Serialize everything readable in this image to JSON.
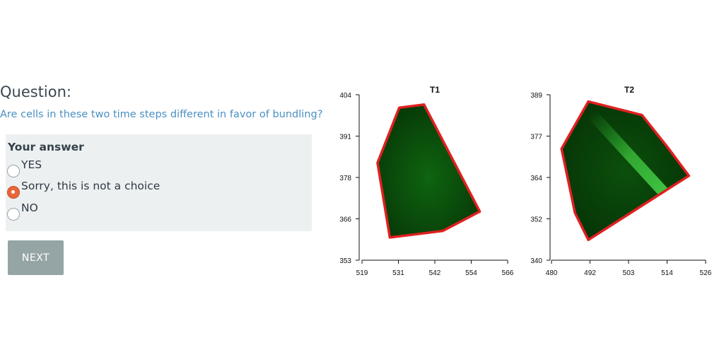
{
  "question": {
    "heading": "Question:",
    "text": "Are cells in these two time steps different in favor of bundling?"
  },
  "answer": {
    "title": "Your answer",
    "options": [
      {
        "label": "YES",
        "selected": false
      },
      {
        "label": "Sorry, this is not a choice",
        "selected": true
      },
      {
        "label": "NO",
        "selected": false
      }
    ]
  },
  "next_button": "NEXT",
  "colors": {
    "link_blue": "#4a8fc2",
    "answer_box_bg": "#edf0f1",
    "radio_selected": "#e9663a",
    "button_bg": "#95a5a6",
    "cell_outline": "#e02020",
    "cell_fill": "#0c5a0c"
  },
  "chart_data": [
    {
      "type": "scatter",
      "title": "T1",
      "x_ticks": [
        "519",
        "531",
        "542",
        "554",
        "566"
      ],
      "y_ticks": [
        "353",
        "366",
        "378",
        "391",
        "404"
      ],
      "xlim": [
        519,
        566
      ],
      "ylim": [
        353,
        404
      ],
      "outline_polygon": [
        [
          531,
          400
        ],
        [
          539,
          401
        ],
        [
          557,
          368
        ],
        [
          545,
          362
        ],
        [
          528,
          360
        ],
        [
          524,
          383
        ]
      ]
    },
    {
      "type": "scatter",
      "title": "T2",
      "x_ticks": [
        "480",
        "492",
        "503",
        "514",
        "526"
      ],
      "y_ticks": [
        "340",
        "352",
        "364",
        "377",
        "389"
      ],
      "xlim": [
        480,
        526
      ],
      "ylim": [
        340,
        389
      ],
      "outline_polygon": [
        [
          491,
          387
        ],
        [
          507,
          383
        ],
        [
          515,
          373
        ],
        [
          521,
          365
        ],
        [
          491,
          346
        ],
        [
          487,
          354
        ],
        [
          483,
          373
        ]
      ]
    }
  ]
}
